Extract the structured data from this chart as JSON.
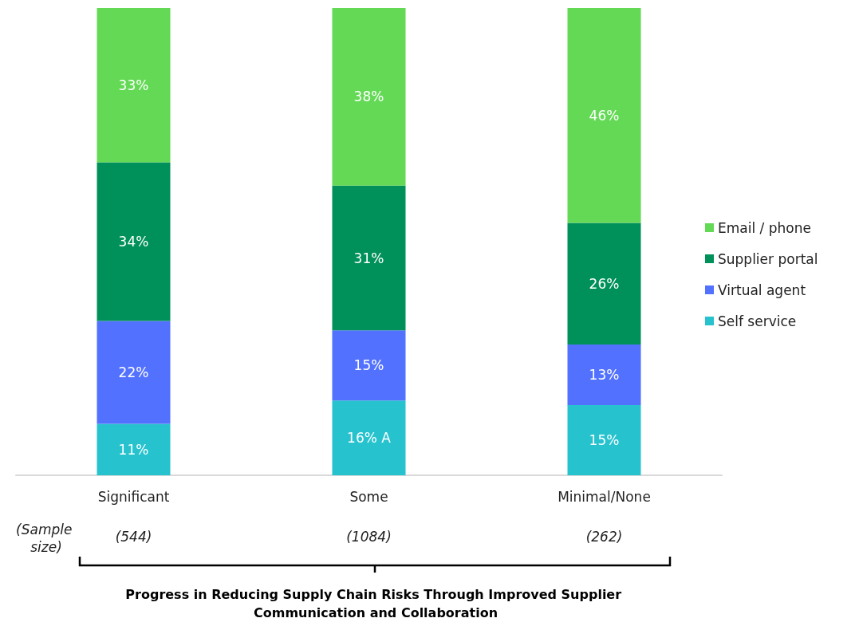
{
  "chart_data": {
    "type": "bar",
    "stacked": true,
    "categories": [
      "Significant",
      "Some",
      "Minimal/None"
    ],
    "series": [
      {
        "name": "Self service",
        "color": "#26c3cf",
        "values": [
          11,
          16,
          15
        ],
        "value_labels": [
          "11%",
          "16% A",
          "15%"
        ]
      },
      {
        "name": "Virtual agent",
        "color": "#5271ff",
        "values": [
          22,
          15,
          13
        ],
        "value_labels": [
          "22%",
          "15%",
          "13%"
        ]
      },
      {
        "name": "Supplier portal",
        "color": "#00915a",
        "values": [
          34,
          31,
          26
        ],
        "value_labels": [
          "34%",
          "31%",
          "26%"
        ]
      },
      {
        "name": "Email / phone",
        "color": "#63d955",
        "values": [
          33,
          38,
          46
        ],
        "value_labels": [
          "33%",
          "38%",
          "46%"
        ]
      }
    ],
    "legend": "right",
    "grid": false,
    "annotations": [
      "(Sample size)",
      "(544)",
      "(1084)",
      "(262)",
      "Progress in Reducing Supply Chain Risks Through Improved Supplier Communication and Collaboration"
    ]
  }
}
